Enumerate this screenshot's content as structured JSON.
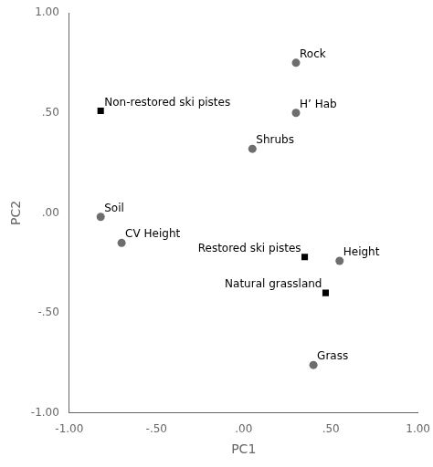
{
  "chart_data": {
    "type": "scatter",
    "xlabel": "PC1",
    "ylabel": "PC2",
    "xlim": [
      -1.0,
      1.0
    ],
    "ylim": [
      -1.0,
      1.0
    ],
    "xticks": [
      {
        "value": -1.0,
        "label": "-1.00"
      },
      {
        "value": -0.5,
        "label": "-.50"
      },
      {
        "value": 0.0,
        "label": ".00"
      },
      {
        "value": 0.5,
        "label": ".50"
      },
      {
        "value": 1.0,
        "label": "1.00"
      }
    ],
    "yticks": [
      {
        "value": -1.0,
        "label": "-1.00"
      },
      {
        "value": -0.5,
        "label": "-.50"
      },
      {
        "value": 0.0,
        "label": ".00"
      },
      {
        "value": 0.5,
        "label": ".50"
      },
      {
        "value": 1.0,
        "label": "1.00"
      }
    ],
    "grid": false,
    "series": [
      {
        "color": "#6e6e6e",
        "marker": "circle",
        "x": [
          0.3,
          0.3,
          0.05,
          -0.82,
          -0.7,
          0.55,
          0.4
        ],
        "values": [
          0.75,
          0.5,
          0.32,
          -0.02,
          -0.15,
          -0.24,
          -0.76
        ],
        "labels": [
          "Rock",
          "H’ Hab",
          "Shrubs",
          "Soil",
          "CV Height",
          "Height",
          "Grass"
        ]
      },
      {
        "color": "#000000",
        "marker": "square",
        "x": [
          -0.82,
          0.35,
          0.47
        ],
        "values": [
          0.51,
          -0.22,
          -0.4
        ],
        "labels": [
          "Non-restored ski pistes",
          "Restored ski pistes",
          "Natural grassland"
        ]
      }
    ]
  }
}
